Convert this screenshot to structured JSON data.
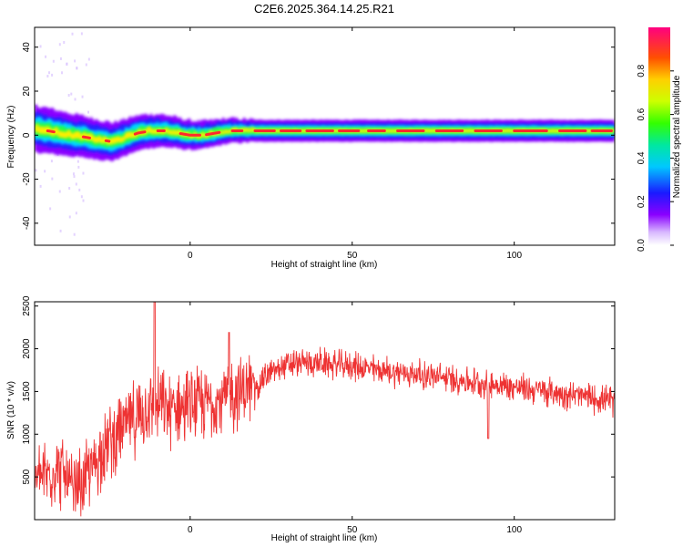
{
  "title": "C2E6.2025.364.14.25.R21",
  "chart_data": [
    {
      "type": "heatmap",
      "xlabel": "Height of straight line (km)",
      "ylabel": "Frequency (Hz)",
      "xlim": [
        -48,
        131
      ],
      "ylim": [
        -50,
        49
      ],
      "xticks": [
        0,
        50,
        100
      ],
      "yticks": [
        -40,
        -20,
        0,
        20,
        40
      ],
      "colorbar": {
        "label": "Normalized spectral amplitude",
        "range": [
          0,
          1
        ],
        "ticks": [
          "0.0",
          "0.2",
          "0.4",
          "0.6",
          "0.8"
        ],
        "tick_values": [
          0.0,
          0.2,
          0.4,
          0.6,
          0.8
        ]
      },
      "ridge": {
        "x": [
          -48,
          -44,
          -40,
          -36,
          -32,
          -28,
          -24,
          -20,
          -16,
          -12,
          -8,
          -4,
          0,
          4,
          8,
          12,
          16,
          20,
          30,
          40,
          50,
          60,
          70,
          80,
          90,
          100,
          110,
          120,
          131
        ],
        "y": [
          3,
          2,
          1,
          0,
          -1,
          -2,
          -3,
          -1,
          1,
          2,
          2,
          1,
          0,
          0,
          1,
          2,
          2,
          2,
          2,
          2,
          2,
          2,
          2,
          2,
          2,
          2,
          2,
          2,
          2
        ]
      }
    },
    {
      "type": "line",
      "xlabel": "Height of straight line (km)",
      "ylabel": "SNR (10 * v/v)",
      "xlim": [
        -48,
        131
      ],
      "ylim": [
        0,
        2550
      ],
      "xticks": [
        0,
        50,
        100
      ],
      "yticks": [
        500,
        1000,
        1500,
        2000,
        2500
      ],
      "color": "#ee3333",
      "envelope": {
        "x": [
          -48,
          -45,
          -40,
          -36,
          -33,
          -30,
          -27,
          -24,
          -20,
          -16,
          -13,
          -11,
          -8,
          -4,
          0,
          4,
          8,
          12,
          16,
          20,
          24,
          28,
          32,
          36,
          40,
          45,
          50,
          55,
          60,
          70,
          80,
          90,
          100,
          110,
          120,
          131
        ],
        "y": [
          480,
          520,
          600,
          300,
          450,
          600,
          850,
          950,
          1100,
          1200,
          1300,
          1350,
          1300,
          1300,
          1320,
          1350,
          1400,
          1450,
          1500,
          1550,
          1700,
          1780,
          1820,
          1840,
          1830,
          1810,
          1800,
          1770,
          1740,
          1700,
          1650,
          1600,
          1550,
          1500,
          1450,
          1380
        ]
      },
      "spikes": [
        {
          "x": -11,
          "y": 2550
        },
        {
          "x": 12,
          "y": 2190
        },
        {
          "x": 92,
          "y": 950
        }
      ]
    }
  ]
}
